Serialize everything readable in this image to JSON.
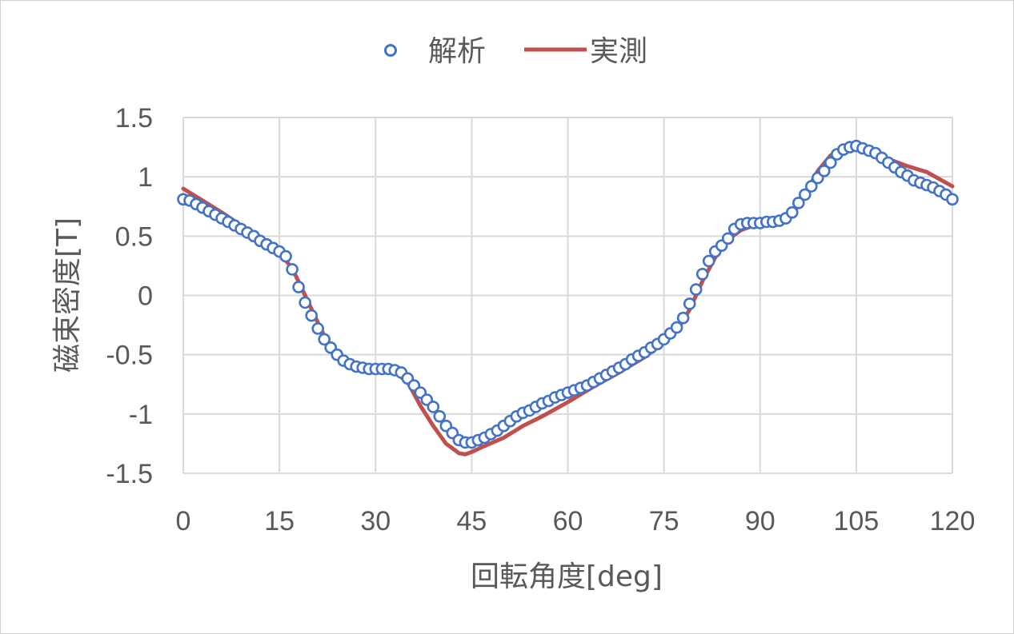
{
  "chart_data": {
    "type": "scatter",
    "title": "",
    "xlabel": "回転角度[deg]",
    "ylabel": "磁束密度[T]",
    "xlim": [
      0,
      120
    ],
    "ylim": [
      -1.5,
      1.5
    ],
    "xticks": [
      0,
      15,
      30,
      45,
      60,
      75,
      90,
      105,
      120
    ],
    "yticks": [
      1.5,
      1,
      0.5,
      0,
      -0.5,
      -1,
      -1.5
    ],
    "xtick_labels": [
      "0",
      "15",
      "30",
      "45",
      "60",
      "75",
      "90",
      "105",
      "120"
    ],
    "ytick_labels": [
      "1.5",
      "1",
      "0.5",
      "0",
      "-0.5",
      "-1",
      "-1.5"
    ],
    "grid": true,
    "legend_position": "top",
    "series": [
      {
        "name": "解析",
        "style": "markers",
        "color": "#4472C4",
        "x": [
          0,
          1,
          2,
          3,
          4,
          5,
          6,
          7,
          8,
          9,
          10,
          11,
          12,
          13,
          14,
          15,
          16,
          17,
          18,
          19,
          20,
          21,
          22,
          23,
          24,
          25,
          26,
          27,
          28,
          29,
          30,
          31,
          32,
          33,
          34,
          35,
          36,
          37,
          38,
          39,
          40,
          41,
          42,
          43,
          44,
          45,
          46,
          47,
          48,
          49,
          50,
          51,
          52,
          53,
          54,
          55,
          56,
          57,
          58,
          59,
          60,
          61,
          62,
          63,
          64,
          65,
          66,
          67,
          68,
          69,
          70,
          71,
          72,
          73,
          74,
          75,
          76,
          77,
          78,
          79,
          80,
          81,
          82,
          83,
          84,
          85,
          86,
          87,
          88,
          89,
          90,
          91,
          92,
          93,
          94,
          95,
          96,
          97,
          98,
          99,
          100,
          101,
          102,
          103,
          104,
          105,
          106,
          107,
          108,
          109,
          110,
          111,
          112,
          113,
          114,
          115,
          116,
          117,
          118,
          119,
          120
        ],
        "y": [
          0.81,
          0.8,
          0.77,
          0.74,
          0.71,
          0.68,
          0.65,
          0.62,
          0.59,
          0.56,
          0.53,
          0.5,
          0.46,
          0.43,
          0.4,
          0.37,
          0.33,
          0.22,
          0.07,
          -0.06,
          -0.17,
          -0.28,
          -0.37,
          -0.44,
          -0.5,
          -0.55,
          -0.58,
          -0.6,
          -0.61,
          -0.62,
          -0.62,
          -0.62,
          -0.62,
          -0.63,
          -0.65,
          -0.7,
          -0.76,
          -0.82,
          -0.88,
          -0.94,
          -1.02,
          -1.1,
          -1.16,
          -1.22,
          -1.24,
          -1.24,
          -1.22,
          -1.2,
          -1.17,
          -1.14,
          -1.1,
          -1.06,
          -1.02,
          -0.99,
          -0.97,
          -0.94,
          -0.91,
          -0.89,
          -0.86,
          -0.84,
          -0.82,
          -0.8,
          -0.78,
          -0.76,
          -0.73,
          -0.7,
          -0.67,
          -0.64,
          -0.61,
          -0.58,
          -0.54,
          -0.51,
          -0.48,
          -0.44,
          -0.41,
          -0.37,
          -0.32,
          -0.27,
          -0.19,
          -0.07,
          0.05,
          0.18,
          0.29,
          0.37,
          0.42,
          0.48,
          0.56,
          0.6,
          0.61,
          0.61,
          0.61,
          0.62,
          0.62,
          0.63,
          0.65,
          0.7,
          0.78,
          0.85,
          0.92,
          0.99,
          1.05,
          1.12,
          1.19,
          1.23,
          1.25,
          1.26,
          1.24,
          1.22,
          1.2,
          1.16,
          1.12,
          1.08,
          1.04,
          1.01,
          0.97,
          0.95,
          0.93,
          0.91,
          0.88,
          0.85,
          0.81
        ]
      },
      {
        "name": "実測",
        "style": "line",
        "color": "#C0504D",
        "x": [
          0,
          3,
          6,
          9,
          12,
          15,
          17,
          19,
          21,
          23,
          25,
          27,
          29,
          31,
          33,
          35,
          37,
          39,
          41,
          43,
          44,
          45,
          47,
          50,
          53,
          56,
          60,
          64,
          68,
          72,
          75,
          77,
          79,
          81,
          83,
          85,
          87,
          89,
          91,
          93,
          95,
          97,
          99,
          101,
          103,
          104,
          105,
          107,
          110,
          113,
          116,
          118,
          120
        ],
        "y": [
          0.9,
          0.8,
          0.7,
          0.59,
          0.47,
          0.36,
          0.23,
          0.0,
          -0.23,
          -0.45,
          -0.55,
          -0.59,
          -0.6,
          -0.62,
          -0.65,
          -0.73,
          -0.93,
          -1.1,
          -1.25,
          -1.33,
          -1.34,
          -1.32,
          -1.27,
          -1.2,
          -1.1,
          -1.02,
          -0.9,
          -0.77,
          -0.65,
          -0.52,
          -0.4,
          -0.3,
          -0.12,
          0.12,
          0.32,
          0.47,
          0.55,
          0.59,
          0.6,
          0.61,
          0.68,
          0.85,
          1.05,
          1.18,
          1.24,
          1.25,
          1.25,
          1.2,
          1.15,
          1.09,
          1.04,
          0.98,
          0.92
        ]
      }
    ]
  }
}
